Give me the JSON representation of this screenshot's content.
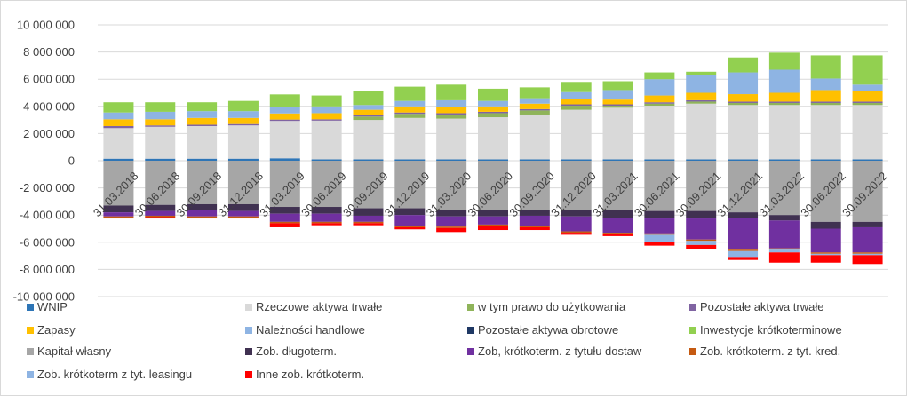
{
  "chart_data": {
    "type": "bar",
    "stacked": true,
    "title": "",
    "xlabel": "",
    "ylabel": "",
    "ylim": [
      -10000000,
      10000000
    ],
    "yticks": [
      10000000,
      8000000,
      6000000,
      4000000,
      2000000,
      0,
      -2000000,
      -4000000,
      -6000000,
      -8000000,
      -10000000
    ],
    "ytick_labels": [
      "10 000 000",
      "8 000 000",
      "6 000 000",
      "4 000 000",
      "2 000 000",
      "0",
      "-2 000 000",
      "-4 000 000",
      "-6 000 000",
      "-8 000 000",
      "-10 000 000"
    ],
    "grid": true,
    "legend_position": "bottom",
    "categories": [
      "31.03.2018",
      "30.06.2018",
      "30.09.2018",
      "31.12.2018",
      "31.03.2019",
      "30.06.2019",
      "30.09.2019",
      "31.12.2019",
      "31.03.2020",
      "30.06.2020",
      "30.09.2020",
      "31.12.2020",
      "31.03.2021",
      "30.06.2021",
      "30.09.2021",
      "31.12.2021",
      "31.03.2022",
      "30.06.2022",
      "30.09.2022"
    ],
    "series": [
      {
        "name": "WNIP",
        "color": "#2e75b6",
        "side": "asset",
        "values": [
          150000,
          150000,
          150000,
          150000,
          180000,
          100000,
          100000,
          100000,
          100000,
          100000,
          100000,
          100000,
          100000,
          100000,
          100000,
          100000,
          100000,
          100000,
          100000
        ]
      },
      {
        "name": "Rzeczowe aktywa trwałe",
        "color": "#d9d9d9",
        "side": "asset",
        "values": [
          2250000,
          2350000,
          2400000,
          2450000,
          2750000,
          2850000,
          2900000,
          3050000,
          3000000,
          3100000,
          3300000,
          3650000,
          3800000,
          3950000,
          4100000,
          4000000,
          4000000,
          4000000,
          4000000
        ]
      },
      {
        "name": "w tym prawo do użytkowania",
        "color": "#8fb45a",
        "side": "asset",
        "values": [
          0,
          0,
          0,
          0,
          0,
          0,
          250000,
          300000,
          300000,
          300000,
          300000,
          300000,
          150000,
          150000,
          150000,
          150000,
          150000,
          150000,
          150000
        ]
      },
      {
        "name": "Pozostałe aktywa trwałe",
        "color": "#8064a2",
        "side": "asset",
        "values": [
          150000,
          100000,
          100000,
          100000,
          100000,
          100000,
          100000,
          100000,
          100000,
          100000,
          100000,
          100000,
          100000,
          100000,
          100000,
          100000,
          100000,
          100000,
          100000
        ]
      },
      {
        "name": "Zapasy",
        "color": "#ffc000",
        "side": "asset",
        "values": [
          500000,
          450000,
          500000,
          450000,
          450000,
          450000,
          400000,
          450000,
          450000,
          400000,
          400000,
          400000,
          350000,
          500000,
          550000,
          550000,
          650000,
          850000,
          800000
        ]
      },
      {
        "name": "Należności handlowe",
        "color": "#8eb4e3",
        "side": "asset",
        "values": [
          500000,
          550000,
          500000,
          500000,
          500000,
          500000,
          350000,
          400000,
          500000,
          400000,
          400000,
          500000,
          700000,
          1200000,
          1300000,
          1600000,
          1700000,
          850000,
          450000
        ]
      },
      {
        "name": "Pozostałe aktywa obrotowe",
        "color": "#1f3864",
        "side": "asset",
        "values": [
          0,
          0,
          0,
          0,
          0,
          0,
          0,
          0,
          0,
          0,
          0,
          0,
          0,
          0,
          0,
          0,
          0,
          0,
          0
        ]
      },
      {
        "name": "Inwestycje krótkoterminowe",
        "color": "#92d050",
        "side": "asset",
        "values": [
          750000,
          700000,
          650000,
          750000,
          900000,
          800000,
          1050000,
          1050000,
          1150000,
          900000,
          800000,
          750000,
          650000,
          500000,
          250000,
          1100000,
          1250000,
          1700000,
          2150000
        ]
      },
      {
        "name": "Kapitał własny",
        "color": "#a6a6a6",
        "side": "liability",
        "values": [
          3300000,
          3250000,
          3200000,
          3200000,
          3400000,
          3400000,
          3500000,
          3500000,
          3650000,
          3650000,
          3600000,
          3650000,
          3650000,
          3700000,
          3700000,
          3800000,
          4000000,
          4500000,
          4500000
        ]
      },
      {
        "name": "Zob. długoterm.",
        "color": "#403151",
        "side": "liability",
        "values": [
          500000,
          450000,
          450000,
          500000,
          500000,
          500000,
          550000,
          500000,
          450000,
          450000,
          450000,
          450000,
          550000,
          550000,
          550000,
          400000,
          400000,
          500000,
          400000
        ]
      },
      {
        "name": "Zob, krótkoterm. z tytułu dostaw",
        "color": "#7030a0",
        "side": "liability",
        "values": [
          300000,
          350000,
          450000,
          400000,
          600000,
          600000,
          450000,
          800000,
          750000,
          600000,
          750000,
          1100000,
          1100000,
          1100000,
          1550000,
          2350000,
          2050000,
          1750000,
          1850000
        ]
      },
      {
        "name": "Zob. krótkoterm. z tyt. kred.",
        "color": "#c55a11",
        "side": "liability",
        "values": [
          100000,
          100000,
          100000,
          100000,
          100000,
          100000,
          100000,
          100000,
          100000,
          100000,
          100000,
          100000,
          100000,
          100000,
          100000,
          100000,
          100000,
          100000,
          100000
        ]
      },
      {
        "name": "Zob. krótkoterm z tyt. leasingu",
        "color": "#8eb4e3",
        "side": "liability",
        "values": [
          0,
          0,
          0,
          0,
          0,
          0,
          0,
          0,
          0,
          0,
          0,
          0,
          0,
          500000,
          300000,
          500000,
          200000,
          100000,
          100000
        ]
      },
      {
        "name": "Inne zob. krótkoterm.",
        "color": "#ff0000",
        "side": "liability",
        "values": [
          50000,
          100000,
          50000,
          50000,
          300000,
          150000,
          150000,
          150000,
          300000,
          300000,
          200000,
          150000,
          150000,
          300000,
          300000,
          150000,
          750000,
          550000,
          650000
        ]
      }
    ]
  }
}
